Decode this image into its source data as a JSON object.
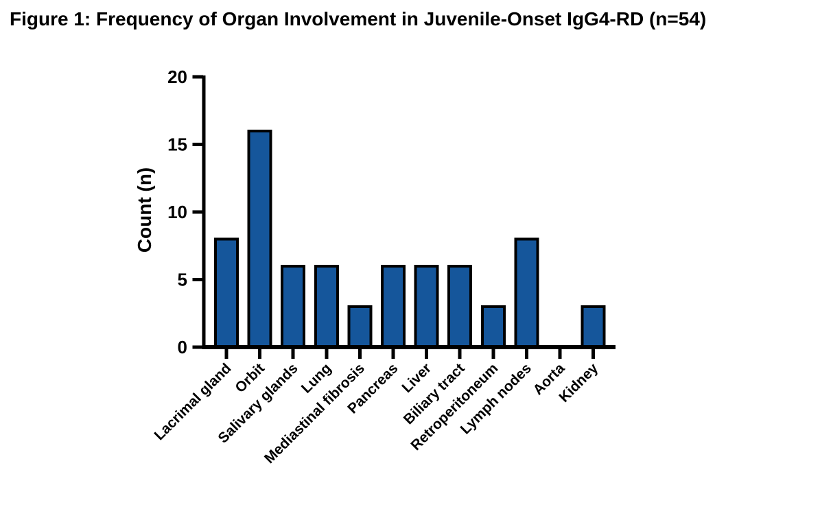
{
  "figure": {
    "title": "Figure 1: Frequency of Organ Involvement in Juvenile-Onset IgG4-RD (n=54)"
  },
  "chart_data": {
    "type": "bar",
    "title": "Figure 1: Frequency of Organ Involvement in Juvenile-Onset IgG4-RD (n=54)",
    "categories": [
      "Lacrimal gland",
      "Orbit",
      "Salivary glands",
      "Lung",
      "Mediastinal fibrosis",
      "Pancreas",
      "Liver",
      "Biliary tract",
      "Retroperitoneum",
      "Lymph nodes",
      "Aorta",
      "Kidney"
    ],
    "values": [
      8,
      16,
      6,
      6,
      3,
      6,
      6,
      6,
      3,
      8,
      0,
      3
    ],
    "xlabel": "",
    "ylabel": "Count (n)",
    "ylim": [
      0,
      20
    ],
    "yticks": [
      0,
      5,
      10,
      15,
      20
    ],
    "grid": false,
    "legend": "none",
    "bar_color": "#15569B",
    "bar_border_color": "#000000",
    "axis_color": "#000000",
    "text_color": "#000000",
    "background_color": "#FFFFFF"
  }
}
